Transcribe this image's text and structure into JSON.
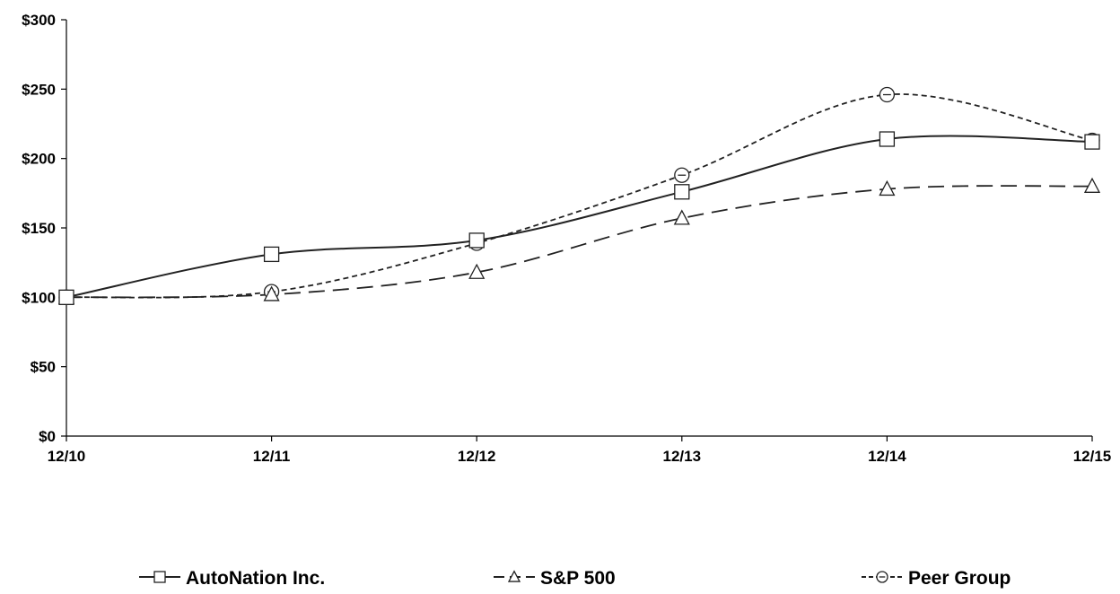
{
  "chart_data": {
    "type": "line",
    "title": "",
    "xlabel": "",
    "ylabel": "",
    "categories": [
      "12/10",
      "12/11",
      "12/12",
      "12/13",
      "12/14",
      "12/15"
    ],
    "y_ticks": [
      "$0",
      "$50",
      "$100",
      "$150",
      "$200",
      "$250",
      "$300"
    ],
    "y_tick_values": [
      0,
      50,
      100,
      150,
      200,
      250,
      300
    ],
    "ylim": [
      0,
      300
    ],
    "grid": false,
    "legend_position": "bottom",
    "series": [
      {
        "name": "AutoNation Inc.",
        "values": [
          100,
          131,
          141,
          176,
          214,
          212
        ],
        "marker": "square",
        "line_style": "solid",
        "color": "#222222"
      },
      {
        "name": "S&P 500",
        "values": [
          100,
          102,
          118,
          157,
          178,
          180
        ],
        "marker": "triangle",
        "line_style": "long-dash",
        "color": "#222222"
      },
      {
        "name": "Peer Group",
        "values": [
          100,
          104,
          139,
          188,
          246,
          213
        ],
        "marker": "circle",
        "line_style": "short-dash",
        "color": "#222222"
      }
    ]
  }
}
